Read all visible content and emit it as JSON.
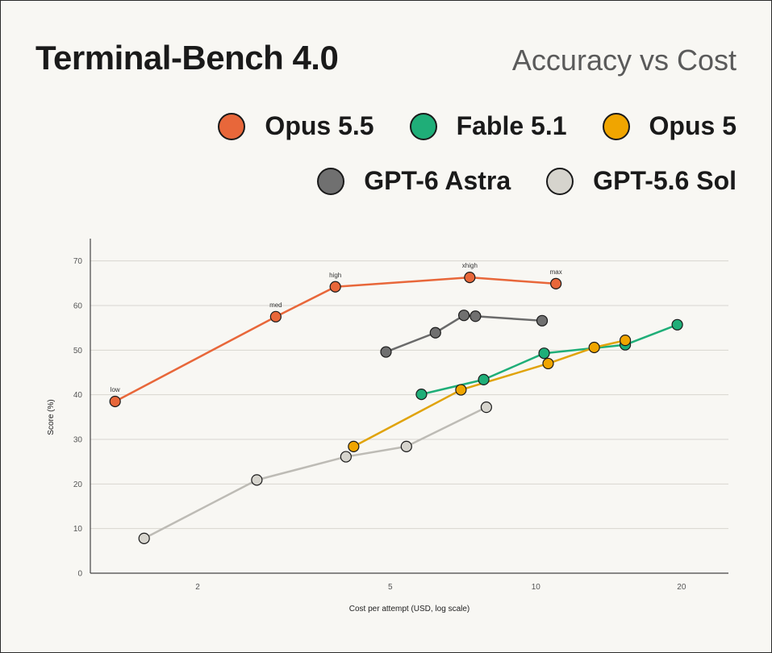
{
  "chart_data": {
    "type": "line",
    "title": "Terminal-Bench 4.0",
    "subtitle": "Accuracy vs Cost",
    "xlabel": "Cost per attempt (USD, log scale)",
    "ylabel": "Score (%)",
    "x_scale": "log",
    "xlim": [
      1.2,
      25
    ],
    "ylim": [
      0,
      75
    ],
    "x_ticks": [
      2,
      5,
      10,
      20
    ],
    "y_ticks": [
      0,
      10,
      20,
      30,
      40,
      50,
      60,
      70
    ],
    "grid": "horizontal",
    "legend_position": "top-right",
    "series": [
      {
        "name": "Opus 5.5",
        "color": "#e8673a",
        "line_color": "#e8673a",
        "points": [
          {
            "x": 1.35,
            "y": 38.5,
            "label": "low"
          },
          {
            "x": 2.9,
            "y": 57.5,
            "label": "med"
          },
          {
            "x": 3.85,
            "y": 64.2,
            "label": "high"
          },
          {
            "x": 7.3,
            "y": 66.3,
            "label": "xhigh"
          },
          {
            "x": 11.0,
            "y": 64.9,
            "label": "max"
          }
        ]
      },
      {
        "name": "Fable 5.1",
        "color": "#1fae78",
        "line_color": "#1fae78",
        "points": [
          {
            "x": 5.8,
            "y": 40.1
          },
          {
            "x": 7.8,
            "y": 43.4
          },
          {
            "x": 10.4,
            "y": 49.3
          },
          {
            "x": 15.3,
            "y": 51.2
          },
          {
            "x": 19.6,
            "y": 55.7
          }
        ]
      },
      {
        "name": "Opus 5",
        "color": "#f0a500",
        "line_color": "#e0a30a",
        "points": [
          {
            "x": 4.2,
            "y": 28.4
          },
          {
            "x": 7.0,
            "y": 41.1
          },
          {
            "x": 10.6,
            "y": 47.0
          },
          {
            "x": 13.2,
            "y": 50.6
          },
          {
            "x": 15.3,
            "y": 52.2
          }
        ]
      },
      {
        "name": "GPT-6 Astra",
        "color": "#707070",
        "line_color": "#6a6a6a",
        "points": [
          {
            "x": 4.9,
            "y": 49.6
          },
          {
            "x": 6.2,
            "y": 53.9
          },
          {
            "x": 7.1,
            "y": 57.8
          },
          {
            "x": 7.5,
            "y": 57.6
          },
          {
            "x": 10.3,
            "y": 56.6
          }
        ]
      },
      {
        "name": "GPT-5.6 Sol",
        "color": "#d6d4cd",
        "line_color": "#bdbbb5",
        "points": [
          {
            "x": 1.55,
            "y": 7.8
          },
          {
            "x": 2.65,
            "y": 20.9
          },
          {
            "x": 4.05,
            "y": 26.1
          },
          {
            "x": 5.4,
            "y": 28.4
          },
          {
            "x": 7.9,
            "y": 37.2
          }
        ]
      }
    ]
  }
}
